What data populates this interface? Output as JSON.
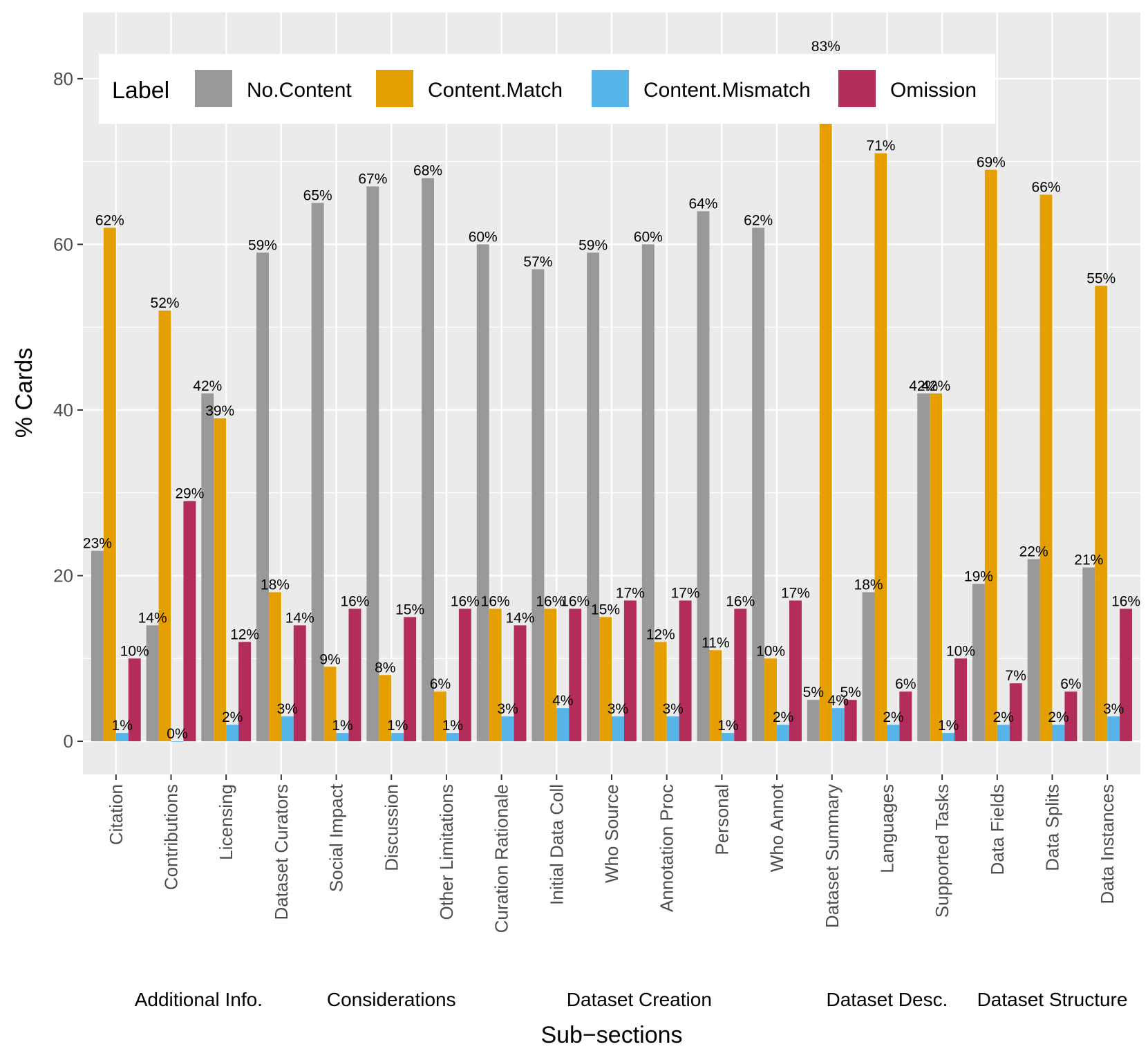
{
  "chart_data": {
    "type": "bar",
    "xlabel": "Sub−sections",
    "ylabel": "% Cards",
    "ylim": [
      -4,
      88
    ],
    "yticks": [
      0,
      20,
      40,
      60,
      80
    ],
    "legend": {
      "title": "Label",
      "placement": "top"
    },
    "series": [
      {
        "name": "No.Content",
        "color": "#999999"
      },
      {
        "name": "Content.Match",
        "color": "#E69F00"
      },
      {
        "name": "Content.Mismatch",
        "color": "#56B4E9"
      },
      {
        "name": "Omission",
        "color": "#B22D5B"
      }
    ],
    "groups": [
      {
        "name": "Additional Info.",
        "categories": [
          {
            "name": "Citation",
            "values": [
              23,
              62,
              1,
              10
            ],
            "labels": [
              "23%",
              "62%",
              "1%",
              "10%"
            ]
          },
          {
            "name": "Contributions",
            "values": [
              14,
              52,
              0,
              29
            ],
            "labels": [
              "14%",
              "52%",
              "0%",
              "29%"
            ]
          },
          {
            "name": "Licensing",
            "values": [
              42,
              39,
              2,
              12
            ],
            "labels": [
              "42%",
              "39%",
              "2%",
              "12%"
            ]
          },
          {
            "name": "Dataset Curators",
            "values": [
              59,
              18,
              3,
              14
            ],
            "labels": [
              "59%",
              "18%",
              "3%",
              "14%"
            ]
          }
        ]
      },
      {
        "name": "Considerations",
        "categories": [
          {
            "name": "Social Impact",
            "values": [
              65,
              9,
              1,
              16
            ],
            "labels": [
              "65%",
              "9%",
              "1%",
              "16%"
            ]
          },
          {
            "name": "Discussion",
            "values": [
              67,
              8,
              1,
              15
            ],
            "labels": [
              "67%",
              "8%",
              "1%",
              "15%"
            ]
          },
          {
            "name": "Other Limitations",
            "values": [
              68,
              6,
              1,
              16
            ],
            "labels": [
              "68%",
              "6%",
              "1%",
              "16%"
            ]
          }
        ]
      },
      {
        "name": "Dataset Creation",
        "categories": [
          {
            "name": "Curation Rationale",
            "values": [
              60,
              16,
              3,
              14
            ],
            "labels": [
              "60%",
              "16%",
              "3%",
              "14%"
            ]
          },
          {
            "name": "Initial Data Coll",
            "values": [
              57,
              16,
              4,
              16
            ],
            "labels": [
              "57%",
              "16%",
              "4%",
              "16%"
            ]
          },
          {
            "name": "Who Source",
            "values": [
              59,
              15,
              3,
              17
            ],
            "labels": [
              "59%",
              "15%",
              "3%",
              "17%"
            ]
          },
          {
            "name": "Annotation Proc",
            "values": [
              60,
              12,
              3,
              17
            ],
            "labels": [
              "60%",
              "12%",
              "3%",
              "17%"
            ]
          },
          {
            "name": "Personal",
            "values": [
              64,
              11,
              1,
              16
            ],
            "labels": [
              "64%",
              "11%",
              "1%",
              "16%"
            ]
          },
          {
            "name": "Who Annot",
            "values": [
              62,
              10,
              2,
              17
            ],
            "labels": [
              "62%",
              "10%",
              "2%",
              "17%"
            ]
          }
        ]
      },
      {
        "name": "Dataset Desc.",
        "categories": [
          {
            "name": "Dataset Summary",
            "values": [
              5,
              83,
              4,
              5
            ],
            "labels": [
              "5%",
              "83%",
              "4%",
              "5%"
            ]
          },
          {
            "name": "Languages",
            "values": [
              18,
              71,
              2,
              6
            ],
            "labels": [
              "18%",
              "71%",
              "2%",
              "6%"
            ]
          },
          {
            "name": "Supported Tasks",
            "values": [
              42,
              42,
              1,
              10
            ],
            "labels": [
              "42%",
              "42%",
              "1%",
              "10%"
            ]
          }
        ]
      },
      {
        "name": "Dataset Structure",
        "categories": [
          {
            "name": "Data Fields",
            "values": [
              19,
              69,
              2,
              7
            ],
            "labels": [
              "19%",
              "69%",
              "2%",
              "7%"
            ]
          },
          {
            "name": "Data Splits",
            "values": [
              22,
              66,
              2,
              6
            ],
            "labels": [
              "22%",
              "66%",
              "2%",
              "6%"
            ]
          },
          {
            "name": "Data Instances",
            "values": [
              21,
              55,
              3,
              16
            ],
            "labels": [
              "21%",
              "55%",
              "3%",
              "16%"
            ]
          }
        ]
      }
    ]
  }
}
